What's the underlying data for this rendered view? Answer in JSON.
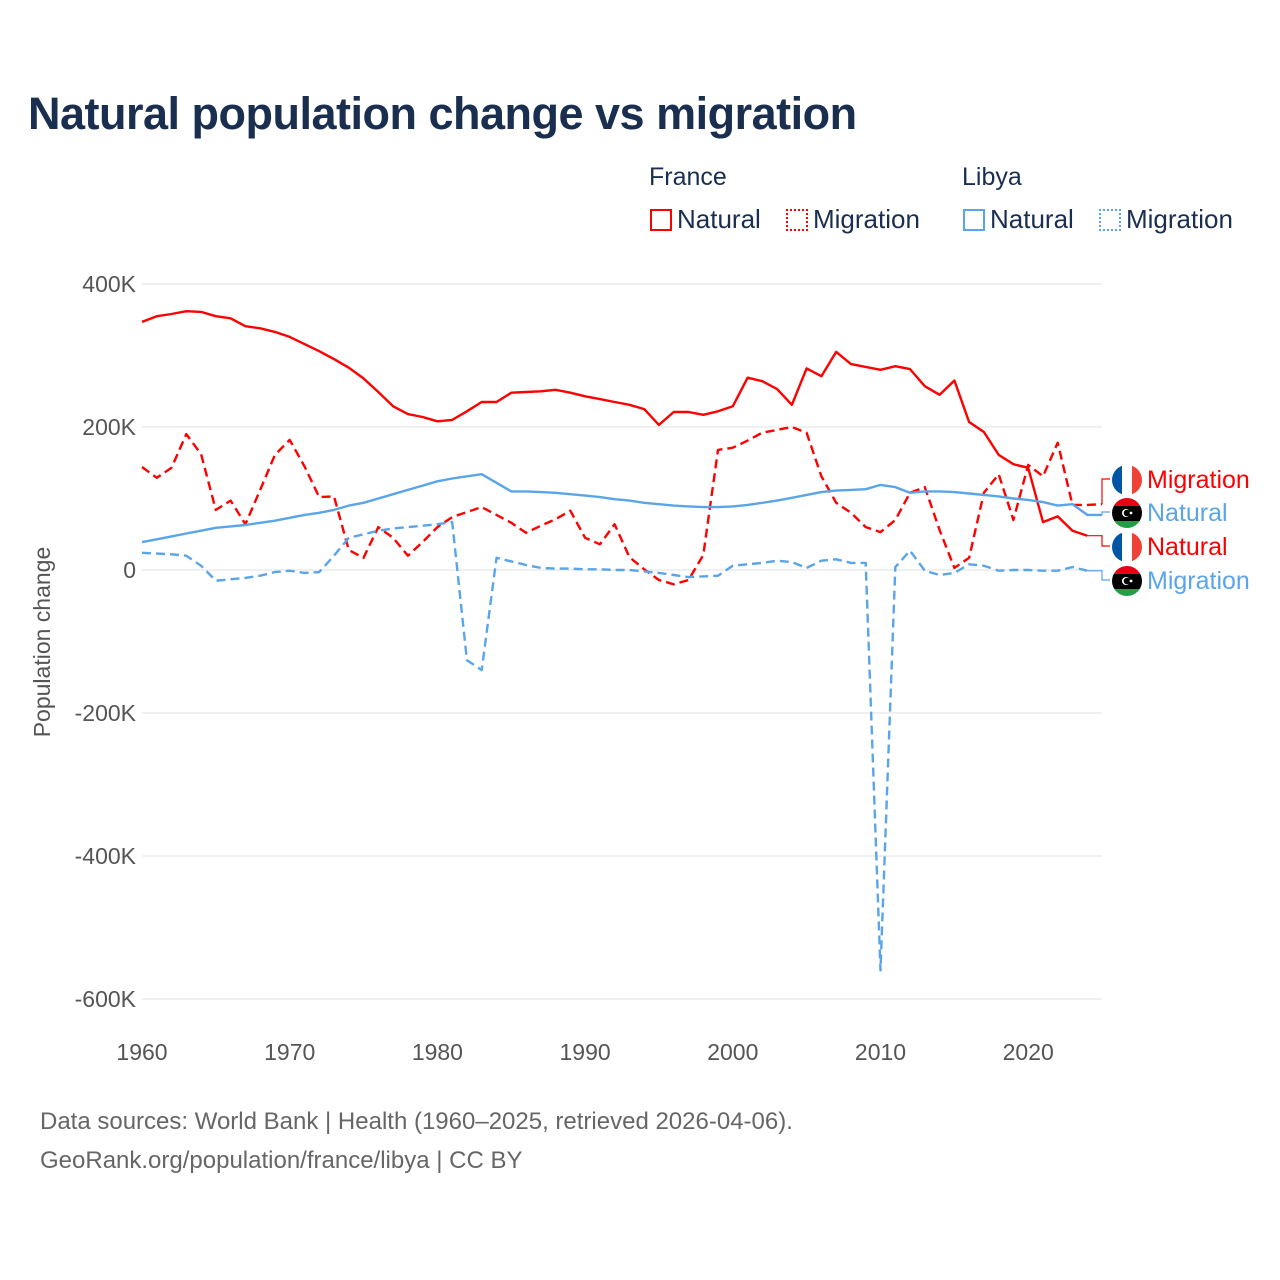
{
  "title": "Natural population change vs migration",
  "legend": {
    "groups": [
      {
        "name": "France",
        "items": [
          "Natural",
          "Migration"
        ],
        "color": "#ff0000"
      },
      {
        "name": "Libya",
        "items": [
          "Natural",
          "Migration"
        ],
        "color": "#5aa5ea"
      }
    ]
  },
  "footer": {
    "line1": "Data sources: World Bank | Health (1960–2025, retrieved 2026-04-06).",
    "line2": "GeoRank.org/population/france/libya | CC BY"
  },
  "chart_data": {
    "type": "line",
    "title": "Natural population change vs migration",
    "xlabel": "",
    "ylabel": "Population change",
    "xlim": [
      1960,
      2025
    ],
    "ylim": [
      -620000,
      420000
    ],
    "grid": true,
    "legend_position": "top-right",
    "xticks": [
      {
        "v": 1960,
        "label": "1960"
      },
      {
        "v": 1970,
        "label": "1970"
      },
      {
        "v": 1980,
        "label": "1980"
      },
      {
        "v": 1990,
        "label": "1990"
      },
      {
        "v": 2000,
        "label": "2000"
      },
      {
        "v": 2010,
        "label": "2010"
      },
      {
        "v": 2020,
        "label": "2020"
      }
    ],
    "yticks": [
      {
        "v": 400000,
        "label": "400K"
      },
      {
        "v": 200000,
        "label": "200K"
      },
      {
        "v": 0,
        "label": "0"
      },
      {
        "v": -200000,
        "label": "-200K"
      },
      {
        "v": -400000,
        "label": "-400K"
      },
      {
        "v": -600000,
        "label": "-600K"
      }
    ],
    "x_start": 1960,
    "series": [
      {
        "name": "France Natural",
        "country": "France",
        "kind": "Natural",
        "end_label": "Natural",
        "color": "#ff0000",
        "dash": false,
        "flag": "france",
        "values": [
          347,
          355,
          358,
          362,
          361,
          355,
          352,
          341,
          338,
          333,
          326,
          316,
          306,
          295,
          283,
          268,
          249,
          229,
          218,
          214,
          208,
          210,
          222,
          235,
          235,
          248,
          249,
          250,
          252,
          248,
          243,
          239,
          235,
          231,
          225,
          203,
          221,
          221,
          217,
          222,
          229,
          269,
          264,
          253,
          231,
          282,
          271,
          305,
          288,
          284,
          280,
          285,
          281,
          257,
          245,
          265,
          207,
          193,
          161,
          148,
          143,
          67,
          75,
          55,
          48
        ]
      },
      {
        "name": "France Migration",
        "country": "France",
        "kind": "Migration",
        "end_label": "Migration",
        "color": "#ff0000",
        "dash": true,
        "flag": "france",
        "values": [
          144,
          129,
          143,
          190,
          162,
          84,
          97,
          64,
          112,
          161,
          182,
          145,
          102,
          103,
          28,
          17,
          60,
          45,
          20,
          39,
          60,
          74,
          81,
          88,
          77,
          66,
          52,
          62,
          71,
          83,
          45,
          36,
          64,
          18,
          1,
          -14,
          -20,
          -14,
          21,
          168,
          171,
          181,
          192,
          196,
          200,
          192,
          131,
          94,
          80,
          60,
          53,
          70,
          108,
          116,
          56,
          3,
          17,
          108,
          134,
          70,
          147,
          131,
          178,
          91,
          91,
          92
        ]
      },
      {
        "name": "Libya Natural",
        "country": "Libya",
        "kind": "Natural",
        "end_label": "Natural",
        "color": "#5aa5ea",
        "dash": false,
        "flag": "libya",
        "values": [
          39,
          43,
          47,
          51,
          55,
          59,
          61,
          63,
          66,
          69,
          73,
          77,
          80,
          84,
          90,
          94,
          100,
          106,
          112,
          118,
          124,
          128,
          131,
          134,
          122,
          110,
          110,
          109,
          108,
          106,
          104,
          102,
          99,
          97,
          94,
          92,
          90,
          89,
          88,
          88,
          89,
          91,
          94,
          97,
          101,
          105,
          109,
          111,
          112,
          113,
          119,
          116,
          108,
          110,
          110,
          109,
          107,
          105,
          103,
          100,
          98,
          95,
          90,
          92,
          77,
          77
        ]
      },
      {
        "name": "Libya Migration",
        "country": "Libya",
        "kind": "Migration",
        "end_label": "Migration",
        "color": "#5aa5ea",
        "dash": true,
        "flag": "libya",
        "values": [
          24,
          23,
          22,
          20,
          6,
          -15,
          -13,
          -11,
          -8,
          -3,
          -1,
          -4,
          -3,
          20,
          45,
          50,
          55,
          58,
          60,
          62,
          64,
          67,
          -126,
          -140,
          17,
          12,
          7,
          3,
          2,
          2,
          1,
          1,
          0,
          0,
          -2,
          -4,
          -7,
          -10,
          -9,
          -8,
          6,
          8,
          10,
          13,
          11,
          3,
          13,
          15,
          10,
          10,
          -560,
          4,
          27,
          -1,
          -7,
          -4,
          8,
          6,
          -1,
          0,
          0,
          -1,
          -1,
          4,
          -1
        ]
      }
    ],
    "value_unit": "thousands"
  }
}
